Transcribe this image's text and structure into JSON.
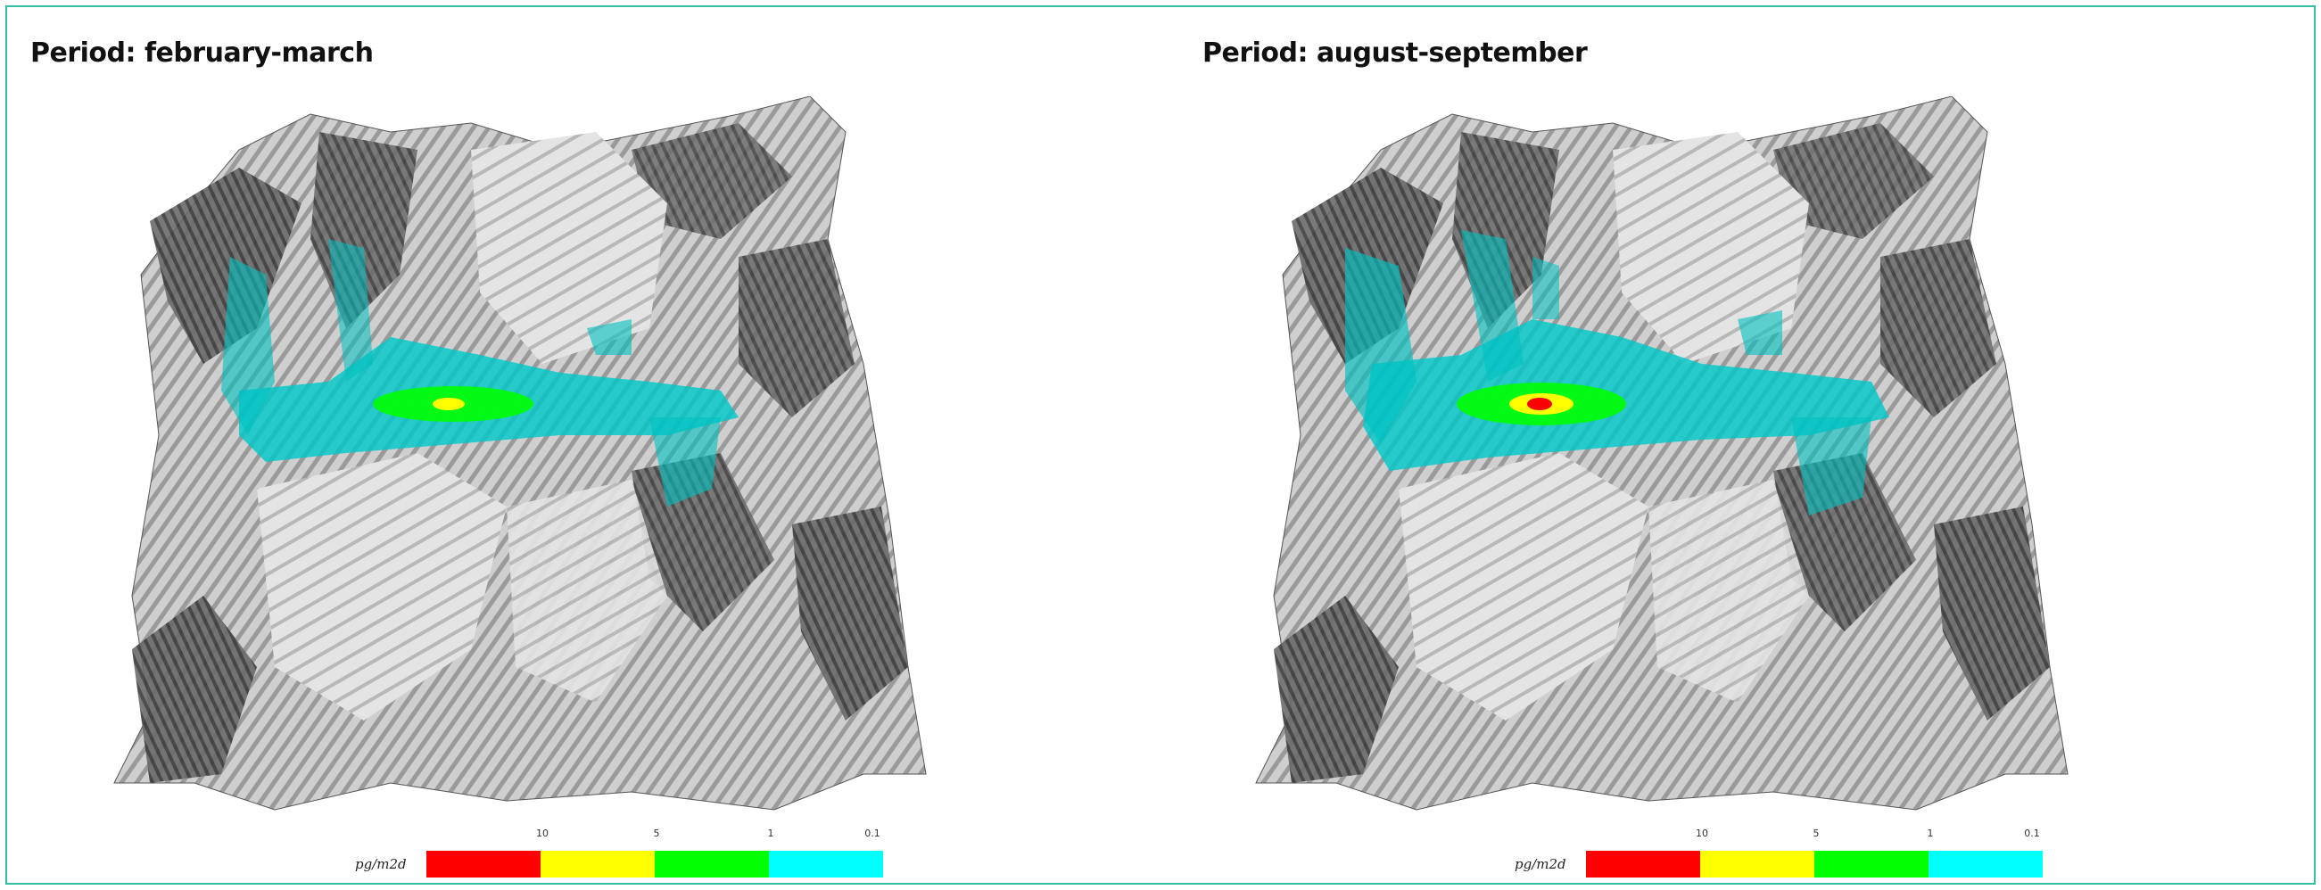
{
  "panels": [
    {
      "title": "Period: february-march",
      "legend": {
        "unit": "pg/m2d",
        "ticks": [
          "10",
          "5",
          "1",
          "0.1"
        ],
        "colors": [
          "#ff0000",
          "#ffff00",
          "#00ff00",
          "#00ffff"
        ]
      },
      "plume": {
        "hotspot_color": "#ffff00"
      }
    },
    {
      "title": "Period: august-september",
      "legend": {
        "unit": "pg/m2d",
        "ticks": [
          "10",
          "5",
          "1",
          "0.1"
        ],
        "colors": [
          "#ff0000",
          "#ffff00",
          "#00ff00",
          "#00ffff"
        ]
      },
      "plume": {
        "hotspot_color": "#ff0000"
      }
    }
  ],
  "colors": {
    "border": "#34c0a0",
    "terrain_light": "#d9d9d9",
    "terrain_dark": "#4a4a4a",
    "plume_cyan": "#00c8c8"
  }
}
